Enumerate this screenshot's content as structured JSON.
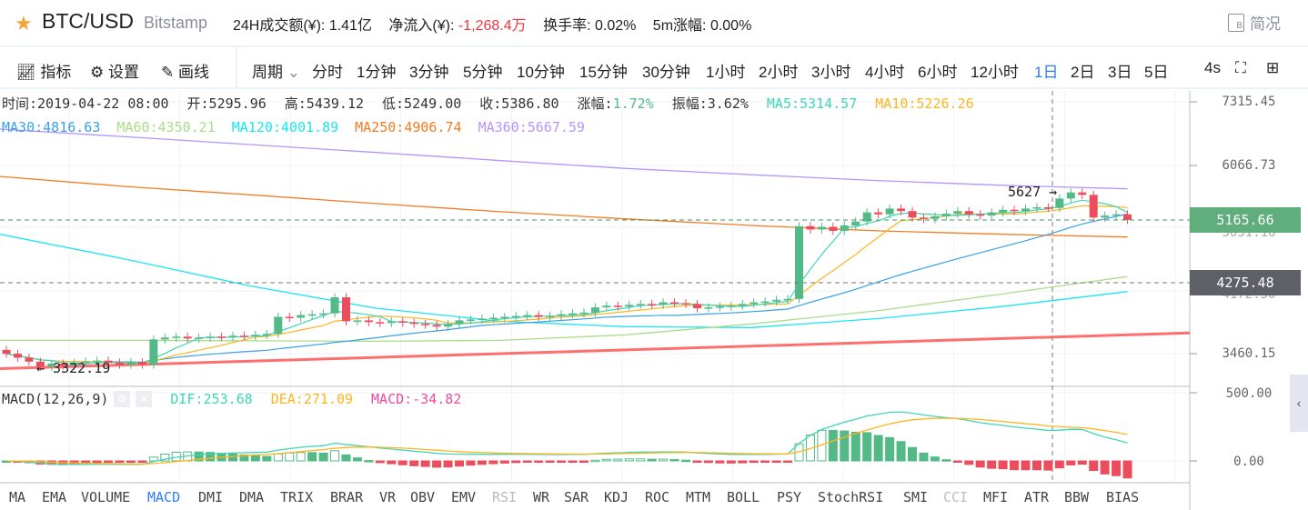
{
  "header": {
    "symbol": "BTC/USD",
    "exchange": "Bitstamp",
    "icon": "star-icon",
    "stats": [
      {
        "label": "24H成交额(¥):",
        "value": "1.41亿"
      },
      {
        "label": "净流入(¥):",
        "value": "-1,268.4万"
      },
      {
        "label": "换手率:",
        "value": "0.02%"
      },
      {
        "label": "5m涨幅:",
        "value": "0.00%"
      }
    ],
    "brief": "简况"
  },
  "toolbar": {
    "indicators": "指标",
    "settings": "设置",
    "draw": "画线",
    "period": "周期",
    "periods": [
      "分时",
      "1分钟",
      "3分钟",
      "5分钟",
      "10分钟",
      "15分钟",
      "30分钟",
      "1小时",
      "2小时",
      "3小时",
      "4小时",
      "6小时",
      "12小时",
      "1日",
      "2日",
      "3日",
      "5日"
    ],
    "active_period": "1日",
    "refresh": "4s"
  },
  "info": {
    "time": "时间:2019-04-22 08:00",
    "open": "开:5295.96",
    "high": "高:5439.12",
    "low": "低:5249.00",
    "close": "收:5386.80",
    "change_label": "涨幅:",
    "change": "1.72%",
    "amp": "振幅:3.62%",
    "ma5": "MA5:5314.57",
    "ma10": "MA10:5226.26",
    "ma30": "MA30:4816.63",
    "ma60": "MA60:4350.21",
    "ma120": "MA120:4001.89",
    "ma250": "MA250:4906.74",
    "ma360": "MA360:5667.59"
  },
  "macd": {
    "title": "MACD(12,26,9)",
    "dif": "DIF:253.68",
    "dea": "DEA:271.09",
    "macd": "MACD:-34.82"
  },
  "axis": {
    "price_ticks": [
      "7315.45",
      "6066.73",
      "3460.15"
    ],
    "last_price": "5165.66",
    "hidden_1": "5031.16",
    "crosshair_price": "4275.48",
    "hidden_2": "4172.36",
    "macd_ticks": [
      "500.00",
      "0.00"
    ]
  },
  "annotations": {
    "high": "5627 →",
    "low": "← 3322.19"
  },
  "indicators": [
    "MA",
    "EMA",
    "VOLUME",
    "MACD",
    "DMI",
    "DMA",
    "TRIX",
    "BRAR",
    "VR",
    "OBV",
    "EMV",
    "RSI",
    "WR",
    "SAR",
    "KDJ",
    "ROC",
    "MTM",
    "BOLL",
    "PSY",
    "StochRSI",
    "SMI",
    "CCI",
    "MFI",
    "ATR",
    "BBW",
    "BIAS"
  ],
  "active_indicator": "MACD",
  "disabled_indicators": [
    "RSI",
    "CCI"
  ],
  "colors": {
    "up": "#53b987",
    "down": "#eb4d5c",
    "ma5": "#3ed6b6",
    "ma10": "#ffb41e",
    "ma30": "#3aa0e6",
    "ma60": "#a8dd8a",
    "ma120": "#19e6f0",
    "ma250": "#f47b20",
    "ma360": "#b594ff",
    "trend": "#ff6e6e"
  },
  "chart_data": {
    "type": "candlestick",
    "interval": "1D",
    "first_open": 3520,
    "close": [
      3480,
      3440,
      3400,
      3350,
      3380,
      3360,
      3390,
      3400,
      3410,
      3390,
      3370,
      3395,
      3370,
      3630,
      3650,
      3660,
      3640,
      3650,
      3660,
      3655,
      3670,
      3665,
      3680,
      3690,
      3880,
      3870,
      3900,
      3910,
      3920,
      4110,
      3830,
      3840,
      3820,
      3810,
      3830,
      3815,
      3800,
      3790,
      3770,
      3800,
      3840,
      3850,
      3860,
      3870,
      3880,
      3890,
      3900,
      3880,
      3890,
      3910,
      3920,
      3930,
      3990,
      4010,
      4000,
      4020,
      4030,
      4020,
      4050,
      4040,
      4030,
      3980,
      3990,
      4000,
      4010,
      4030,
      4050,
      4060,
      4080,
      4090,
      5070,
      5020,
      5060,
      5000,
      5080,
      5140,
      5280,
      5250,
      5340,
      5300,
      5200,
      5180,
      5220,
      5260,
      5300,
      5250,
      5230,
      5280,
      5320,
      5300,
      5340,
      5360,
      5350,
      5500,
      5600,
      5560,
      5200,
      5230,
      5250,
      5165
    ],
    "ma60": [
      3620,
      3620,
      3615,
      3610,
      3620,
      3680,
      3800,
      3950,
      4150,
      4370
    ],
    "ma120": [
      4950,
      4600,
      4250,
      3980,
      3830,
      3770,
      3760,
      3860,
      4000,
      4180
    ],
    "ma250": [
      5870,
      5700,
      5560,
      5420,
      5290,
      5180,
      5080,
      5000,
      4950,
      4910
    ],
    "ma360": [
      6750,
      6600,
      6450,
      6300,
      6150,
      6010,
      5900,
      5800,
      5720,
      5660
    ],
    "trendline": [
      3330,
      3700
    ],
    "yscale": "log",
    "ylim": [
      3150,
      7600
    ],
    "macd_ylim": [
      -120,
      500
    ]
  }
}
